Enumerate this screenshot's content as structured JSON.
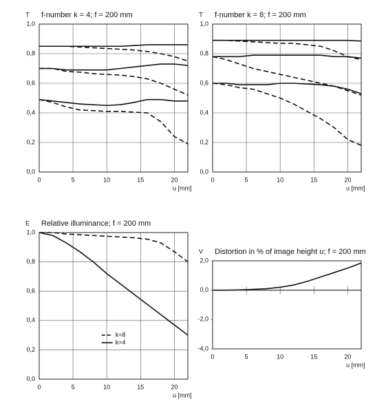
{
  "chart_data": [
    {
      "type": "line",
      "title": "f-number k = 4; f = 200 mm",
      "y_label": "T",
      "x_label": "u [mm]",
      "x": [
        0,
        2,
        4,
        6,
        8,
        10,
        12,
        14,
        16,
        18,
        20,
        22
      ],
      "xlim": [
        0,
        22
      ],
      "xticks": [
        0,
        5,
        10,
        15,
        20
      ],
      "ylim": [
        0,
        1
      ],
      "yticks": [
        {
          "value": 0,
          "label": "0,0"
        },
        {
          "value": 0.2,
          "label": "0,2"
        },
        {
          "value": 0.4,
          "label": "0,4"
        },
        {
          "value": 0.6,
          "label": "0,6"
        },
        {
          "value": 0.8,
          "label": "0,8"
        },
        {
          "value": 1,
          "label": "1,0"
        }
      ],
      "grid": true,
      "series": [
        {
          "style": "solid",
          "color": "#111",
          "values": [
            0.85,
            0.85,
            0.85,
            0.85,
            0.85,
            0.85,
            0.85,
            0.855,
            0.86,
            0.86,
            0.86,
            0.86
          ]
        },
        {
          "style": "dashed",
          "color": "#111",
          "values": [
            0.85,
            0.85,
            0.85,
            0.845,
            0.84,
            0.835,
            0.83,
            0.825,
            0.815,
            0.8,
            0.78,
            0.75
          ]
        },
        {
          "style": "solid",
          "color": "#111",
          "values": [
            0.7,
            0.7,
            0.69,
            0.69,
            0.69,
            0.69,
            0.7,
            0.71,
            0.72,
            0.73,
            0.73,
            0.72
          ]
        },
        {
          "style": "dashed",
          "color": "#111",
          "values": [
            0.7,
            0.7,
            0.68,
            0.675,
            0.665,
            0.66,
            0.655,
            0.645,
            0.63,
            0.6,
            0.56,
            0.52
          ]
        },
        {
          "style": "solid",
          "color": "#111",
          "values": [
            0.49,
            0.48,
            0.47,
            0.46,
            0.455,
            0.45,
            0.455,
            0.47,
            0.49,
            0.49,
            0.48,
            0.48
          ]
        },
        {
          "style": "dashed",
          "color": "#111",
          "values": [
            0.49,
            0.47,
            0.44,
            0.42,
            0.415,
            0.41,
            0.41,
            0.405,
            0.4,
            0.34,
            0.24,
            0.19
          ]
        }
      ]
    },
    {
      "type": "line",
      "title": "f-number k = 8; f = 200 mm",
      "y_label": "T",
      "x_label": "u [mm]",
      "x": [
        0,
        2,
        4,
        6,
        8,
        10,
        12,
        14,
        16,
        18,
        20,
        22
      ],
      "xlim": [
        0,
        22
      ],
      "xticks": [
        0,
        5,
        10,
        15,
        20
      ],
      "ylim": [
        0,
        1
      ],
      "yticks": [
        {
          "value": 0,
          "label": "0,0"
        },
        {
          "value": 0.2,
          "label": "0,2"
        },
        {
          "value": 0.4,
          "label": "0,4"
        },
        {
          "value": 0.6,
          "label": "0,6"
        },
        {
          "value": 0.8,
          "label": "0,8"
        },
        {
          "value": 1,
          "label": "1,0"
        }
      ],
      "grid": true,
      "series": [
        {
          "style": "solid",
          "color": "#111",
          "values": [
            0.89,
            0.89,
            0.89,
            0.89,
            0.89,
            0.89,
            0.89,
            0.89,
            0.89,
            0.89,
            0.89,
            0.885
          ]
        },
        {
          "style": "dashed",
          "color": "#111",
          "values": [
            0.89,
            0.89,
            0.885,
            0.88,
            0.875,
            0.87,
            0.87,
            0.86,
            0.85,
            0.82,
            0.78,
            0.76
          ]
        },
        {
          "style": "solid",
          "color": "#111",
          "values": [
            0.78,
            0.78,
            0.78,
            0.79,
            0.79,
            0.79,
            0.79,
            0.79,
            0.79,
            0.78,
            0.78,
            0.77
          ]
        },
        {
          "style": "dashed",
          "color": "#111",
          "values": [
            0.78,
            0.76,
            0.73,
            0.7,
            0.68,
            0.66,
            0.64,
            0.62,
            0.6,
            0.58,
            0.55,
            0.52
          ]
        },
        {
          "style": "solid",
          "color": "#111",
          "values": [
            0.6,
            0.6,
            0.59,
            0.59,
            0.59,
            0.6,
            0.6,
            0.595,
            0.59,
            0.58,
            0.56,
            0.53
          ]
        },
        {
          "style": "dashed",
          "color": "#111",
          "values": [
            0.6,
            0.59,
            0.57,
            0.56,
            0.53,
            0.5,
            0.46,
            0.41,
            0.36,
            0.3,
            0.22,
            0.18
          ]
        }
      ]
    },
    {
      "type": "line",
      "title": "Relative illuminance; f = 200 mm",
      "y_label": "E",
      "x_label": "u [mm]",
      "x": [
        0,
        2,
        4,
        6,
        8,
        10,
        12,
        14,
        16,
        18,
        20,
        22
      ],
      "xlim": [
        0,
        22
      ],
      "xticks": [
        0,
        5,
        10,
        15,
        20
      ],
      "ylim": [
        0,
        1
      ],
      "yticks": [
        {
          "value": 0,
          "label": "0,0"
        },
        {
          "value": 0.2,
          "label": "0,2"
        },
        {
          "value": 0.4,
          "label": "0,4"
        },
        {
          "value": 0.6,
          "label": "0,6"
        },
        {
          "value": 0.8,
          "label": "0,8"
        },
        {
          "value": 1,
          "label": "1,0"
        }
      ],
      "grid": true,
      "legend": "lower center",
      "series": [
        {
          "name": "k=8",
          "style": "dashed",
          "color": "#111",
          "values": [
            1,
            1,
            0.99,
            0.985,
            0.98,
            0.975,
            0.97,
            0.965,
            0.955,
            0.93,
            0.87,
            0.8
          ]
        },
        {
          "name": "k=4",
          "style": "solid",
          "color": "#111",
          "values": [
            1,
            0.98,
            0.93,
            0.87,
            0.8,
            0.72,
            0.65,
            0.58,
            0.51,
            0.44,
            0.37,
            0.3
          ]
        }
      ]
    },
    {
      "type": "line",
      "title": "Distortion in % of image height u; f = 200 mm",
      "y_label": "V",
      "x_label": "u [mm]",
      "x": [
        0,
        2,
        4,
        6,
        8,
        10,
        12,
        14,
        16,
        18,
        20,
        22
      ],
      "xlim": [
        0,
        22
      ],
      "xticks": [
        0,
        5,
        10,
        15,
        20
      ],
      "ylim": [
        -4,
        2
      ],
      "yticks": [
        {
          "value": 2,
          "label": "2,0"
        },
        {
          "value": 0,
          "label": "0,0"
        },
        {
          "value": -2,
          "label": "-2,0"
        },
        {
          "value": -4,
          "label": "-4,0"
        }
      ],
      "grid": false,
      "series": [
        {
          "style": "solid",
          "color": "#111",
          "values": [
            0,
            0,
            0.02,
            0.05,
            0.1,
            0.2,
            0.35,
            0.6,
            0.9,
            1.2,
            1.5,
            1.85
          ]
        }
      ]
    }
  ]
}
